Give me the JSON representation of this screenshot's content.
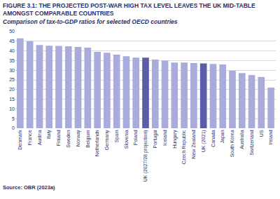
{
  "chart_data": {
    "type": "bar",
    "title": "FIGURE 3.1: THE PROJECTED POST-WAR HIGH TAX LEVEL LEAVES THE UK MID-TABLE AMONGST COMPARABLE COUNTRIES",
    "subtitle": "Comparison of tax-to-GDP ratios for selected OECD countries",
    "source": "Source: OBR (2023a)",
    "categories": [
      "Denmark",
      "France",
      "Austria",
      "Italy",
      "Finland",
      "Sweden",
      "Norway",
      "Belgium",
      "Netherlands",
      "Germany",
      "Spain",
      "Slovenia",
      "Poland",
      "UK (2027/28 projection)",
      "Portugal",
      "Iceland",
      "Hungary",
      "Czech Republic",
      "New Zealand",
      "UK (2021)",
      "Canada",
      "Japan",
      "South Korea",
      "Australia",
      "Switzerland",
      "US",
      "Ireland"
    ],
    "values": [
      46.5,
      45,
      43,
      42.7,
      42.6,
      42.4,
      42,
      41.7,
      39.5,
      39,
      38,
      37.2,
      36.5,
      36.5,
      35.5,
      35,
      34,
      34,
      33.7,
      33.5,
      33.2,
      33,
      29.8,
      28.5,
      27.5,
      26.5,
      21
    ],
    "colors": [
      "#a9abda",
      "#a9abda",
      "#a9abda",
      "#a9abda",
      "#a9abda",
      "#a9abda",
      "#a9abda",
      "#a9abda",
      "#a9abda",
      "#a9abda",
      "#a9abda",
      "#a9abda",
      "#a9abda",
      "#5b5ea6",
      "#a9abda",
      "#a9abda",
      "#a9abda",
      "#a9abda",
      "#a9abda",
      "#5b5ea6",
      "#a9abda",
      "#a9abda",
      "#a9abda",
      "#a9abda",
      "#a9abda",
      "#a9abda",
      "#a9abda"
    ],
    "ylim": [
      0,
      50
    ],
    "yticks": [
      0,
      5,
      10,
      15,
      20,
      25,
      30,
      35,
      40,
      45,
      50
    ],
    "grid": true
  }
}
